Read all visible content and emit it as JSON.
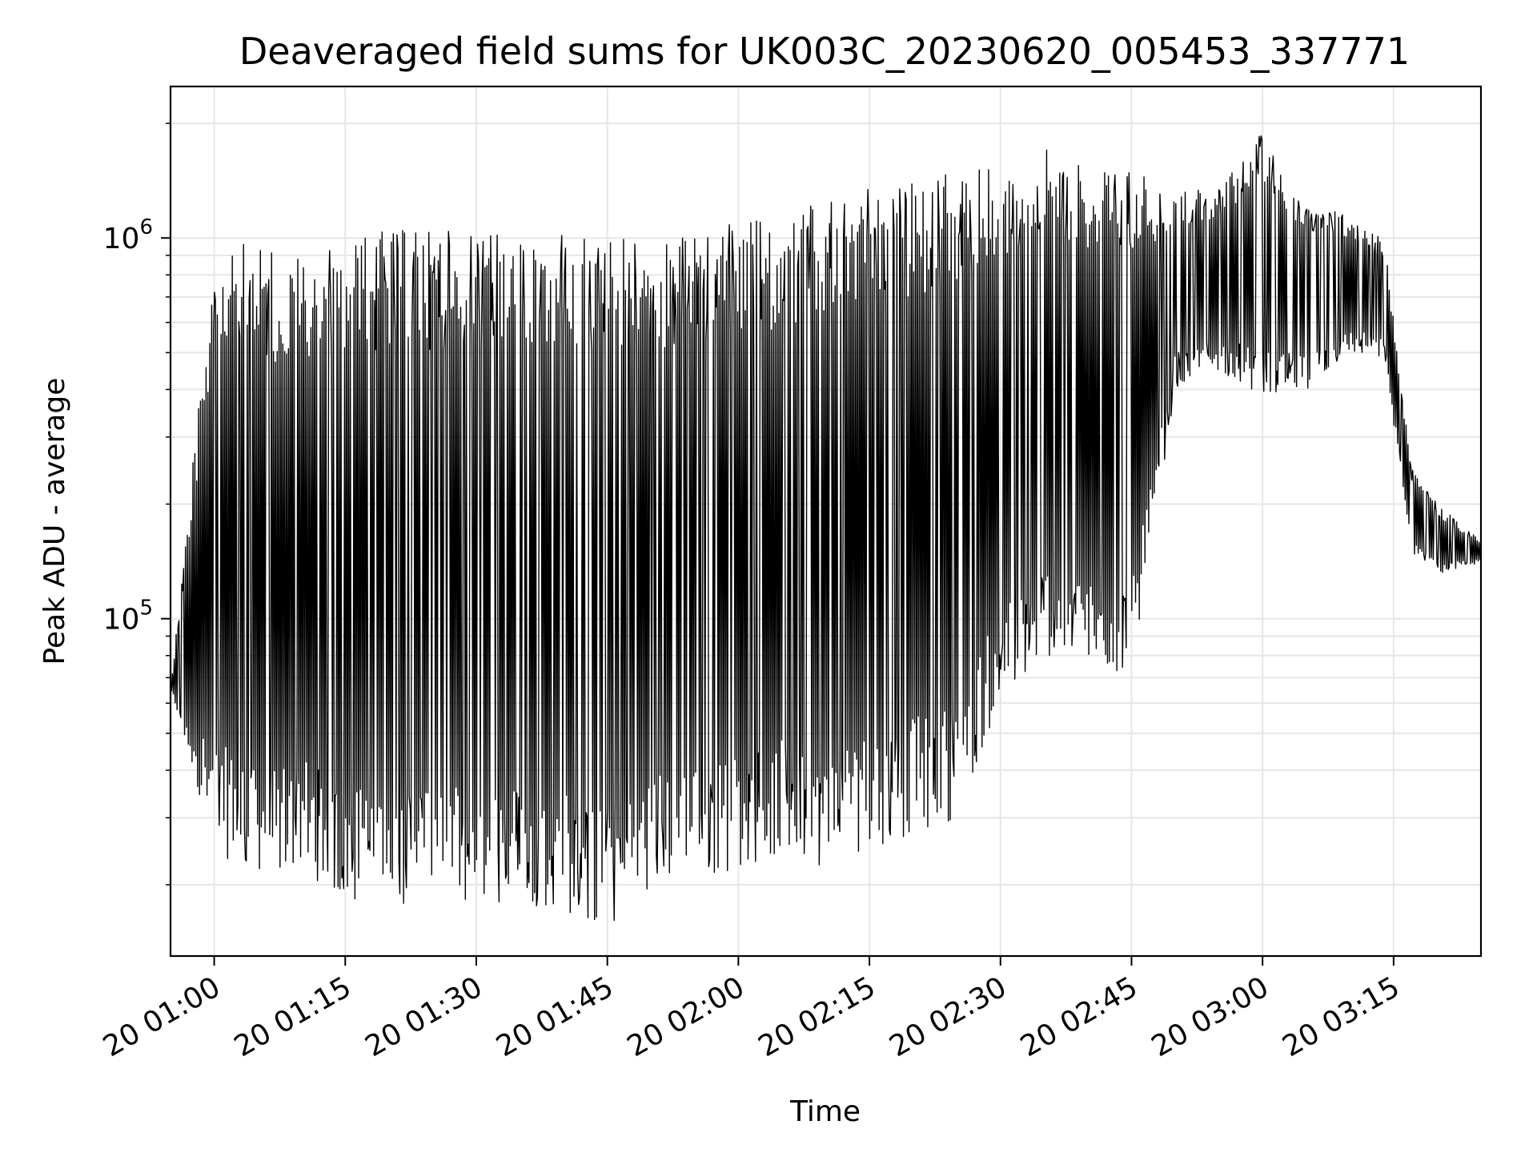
{
  "chart_data": {
    "type": "line",
    "title": "Deaveraged field sums for UK003C_20230620_005453_337771",
    "xlabel": "Time",
    "ylabel": "Peak ADU - average",
    "yscale": "log",
    "ylim": [
      13000,
      2500000
    ],
    "xlim": [
      "20 00:55",
      "20 03:25"
    ],
    "grid": true,
    "line_color": "#000000",
    "x_ticks": [
      "20 01:00",
      "20 01:15",
      "20 01:30",
      "20 01:45",
      "20 02:00",
      "20 02:15",
      "20 02:30",
      "20 02:45",
      "20 03:00",
      "20 03:15"
    ],
    "y_ticks": [
      {
        "value": 100000,
        "base": "10",
        "exp": "5"
      },
      {
        "value": 1000000,
        "base": "10",
        "exp": "6"
      }
    ],
    "series": [
      {
        "x": [
          "20 00:55",
          "20 01:00",
          "20 01:05",
          "20 01:10",
          "20 01:15",
          "20 01:20",
          "20 01:25",
          "20 01:30",
          "20 01:35",
          "20 01:40",
          "20 01:45",
          "20 01:50",
          "20 01:55",
          "20 02:00",
          "20 02:05",
          "20 02:10",
          "20 02:15",
          "20 02:20",
          "20 02:25",
          "20 02:30",
          "20 02:35",
          "20 02:40",
          "20 02:45",
          "20 02:50",
          "20 02:55",
          "20 03:00",
          "20 03:05",
          "20 03:10",
          "20 03:14",
          "20 03:17",
          "20 03:20",
          "20 03:25"
        ],
        "upper": [
          65000,
          1000000,
          950000,
          900000,
          1000000,
          1050000,
          1050000,
          1050000,
          1000000,
          1050000,
          1050000,
          1000000,
          1050000,
          1100000,
          1150000,
          1250000,
          1350000,
          1400000,
          1500000,
          1550000,
          1750000,
          1600000,
          1500000,
          1350000,
          1350000,
          1900000,
          1250000,
          1150000,
          1000000,
          250000,
          200000,
          160000
        ],
        "lower": [
          65000,
          25000,
          20000,
          22000,
          18000,
          17000,
          19000,
          17000,
          18000,
          17000,
          15000,
          20000,
          21000,
          22000,
          24000,
          22000,
          25000,
          27000,
          30000,
          60000,
          80000,
          75000,
          70000,
          400000,
          450000,
          380000,
          400000,
          500000,
          480000,
          150000,
          130000,
          140000
        ]
      }
    ]
  }
}
